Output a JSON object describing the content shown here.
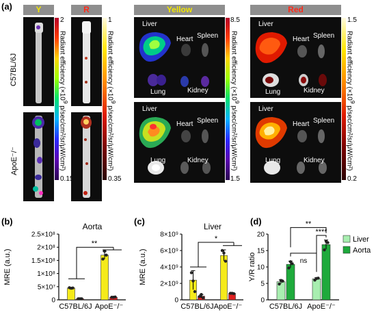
{
  "panel_a": {
    "label": "(a)",
    "headers": {
      "y": "Y",
      "r": "R",
      "yellow": "Yellow",
      "red": "Red"
    },
    "row_labels": [
      "C57BL/6J",
      "ApoE⁻/⁻"
    ],
    "organs": {
      "liver": "Liver",
      "heart": "Heart",
      "spleen": "Spleen",
      "lung": "Lung",
      "kidney": "Kidney"
    },
    "colorbar_title": "Radiant efficiency (×10",
    "colorbar_exp": "9",
    "colorbar_units": "p/sec/cm²/sr",
    "colorbar_units2": "μW/cm²",
    "colorbars": {
      "y": {
        "max": "2",
        "min": "0.15"
      },
      "r": {
        "max": "1",
        "min": "0.35"
      },
      "yellow": {
        "max": "8.5",
        "min": "1.5"
      },
      "red": {
        "max": "1.5",
        "min": "0.2"
      }
    },
    "colors": {
      "yellow_header": "#f2e600",
      "red_header": "#ff2a1a"
    }
  },
  "chart_data": [
    {
      "panel": "(b)",
      "type": "bar",
      "title": "Aorta",
      "ylabel": "MRE (a.u.)",
      "categories": [
        "C57BL/6J",
        "ApoE⁻/⁻"
      ],
      "series": [
        {
          "color": "#f5ea1a",
          "values": [
            45000000,
            170000000
          ],
          "points": [
            [
              46000000,
              44000000,
              45000000
            ],
            [
              155000000,
              185000000,
              170000000
            ]
          ]
        },
        {
          "color": "#e02020",
          "values": [
            4000000,
            10000000
          ],
          "points": [
            [
              4000000,
              4000000,
              4000000
            ],
            [
              10000000,
              10000000,
              11000000
            ]
          ]
        }
      ],
      "ylim": [
        0,
        250000000
      ],
      "yticks": [
        "0",
        "5×10⁷",
        "1×10⁸",
        "1.5×10⁸",
        "2×10⁸",
        "2.5×10⁸"
      ],
      "significance": "**"
    },
    {
      "panel": "(c)",
      "type": "bar",
      "title": "Liver",
      "ylabel": "MRE (a.u.)",
      "categories": [
        "C57BL/6J",
        "ApoE⁻/⁻"
      ],
      "series": [
        {
          "color": "#f5ea1a",
          "values": [
            2400000000,
            5400000000
          ],
          "points": [
            [
              3300000000,
              2300000000,
              1000000000
            ],
            [
              6000000000,
              5700000000,
              4700000000
            ]
          ]
        },
        {
          "color": "#e02020",
          "values": [
            450000000,
            800000000
          ],
          "points": [
            [
              400000000,
              650000000,
              250000000
            ],
            [
              800000000,
              800000000,
              750000000
            ]
          ]
        }
      ],
      "ylim": [
        0,
        8000000000
      ],
      "yticks": [
        "0",
        "2×10⁹",
        "4×10⁹",
        "6×10⁹",
        "8×10⁹"
      ],
      "significance": "*"
    },
    {
      "panel": "(d)",
      "type": "bar",
      "title": "",
      "ylabel": "Y/R ratio",
      "categories": [
        "C57BL/6J",
        "ApoE⁻/⁻"
      ],
      "series": [
        {
          "name": "Liver",
          "color": "#a8eeb0",
          "values": [
            5.5,
            6.4
          ],
          "points": [
            [
              4.8,
              5.9,
              5.7
            ],
            [
              6.0,
              6.5,
              6.6
            ]
          ]
        },
        {
          "name": "Aorta",
          "color": "#1eaa3c",
          "values": [
            10.8,
            16.8
          ],
          "points": [
            [
              9.7,
              11.6,
              11.0
            ],
            [
              15.2,
              17.8,
              17.4
            ]
          ]
        }
      ],
      "ylim": [
        0,
        20
      ],
      "yticks": [
        "0",
        "5",
        "10",
        "15",
        "20"
      ],
      "legend": "right",
      "significance": [
        "ns",
        "**",
        "****"
      ]
    }
  ]
}
